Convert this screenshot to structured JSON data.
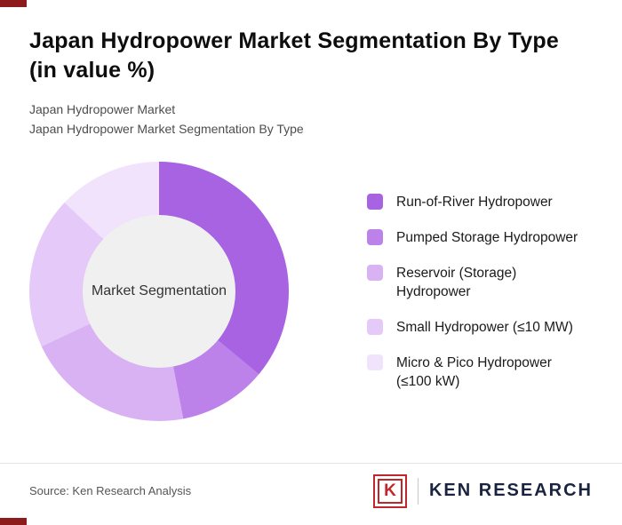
{
  "accent": {
    "color": "#8e1b1b"
  },
  "header": {
    "title": "Japan Hydropower Market Segmentation By Type (in value %)",
    "subtitle_line1": "Japan Hydropower Market",
    "subtitle_line2": "Japan Hydropower Market Segmentation By Type"
  },
  "chart_data": {
    "type": "pie",
    "donut": true,
    "title": "Japan Hydropower Market Segmentation By Type (in value %)",
    "center_label": "Market Segmentation",
    "center_fill": "#f0f0f0",
    "start_angle_deg": 0,
    "direction": "clockwise",
    "legend_position": "right",
    "values_estimated": true,
    "categories": [
      "Run-of-River Hydropower",
      "Pumped Storage Hydropower",
      "Reservoir (Storage) Hydropower",
      "Small Hydropower (≤10 MW)",
      "Micro & Pico Hydropower (≤100 kW)"
    ],
    "values": [
      36,
      11,
      21,
      19,
      13
    ],
    "colors": [
      "#a763e2",
      "#bc82ea",
      "#d9b2f3",
      "#e5c9f8",
      "#f0e3fb"
    ]
  },
  "footer": {
    "source": "Source: Ken Research Analysis",
    "logo_letter": "K",
    "logo_text": "KEN RESEARCH"
  }
}
